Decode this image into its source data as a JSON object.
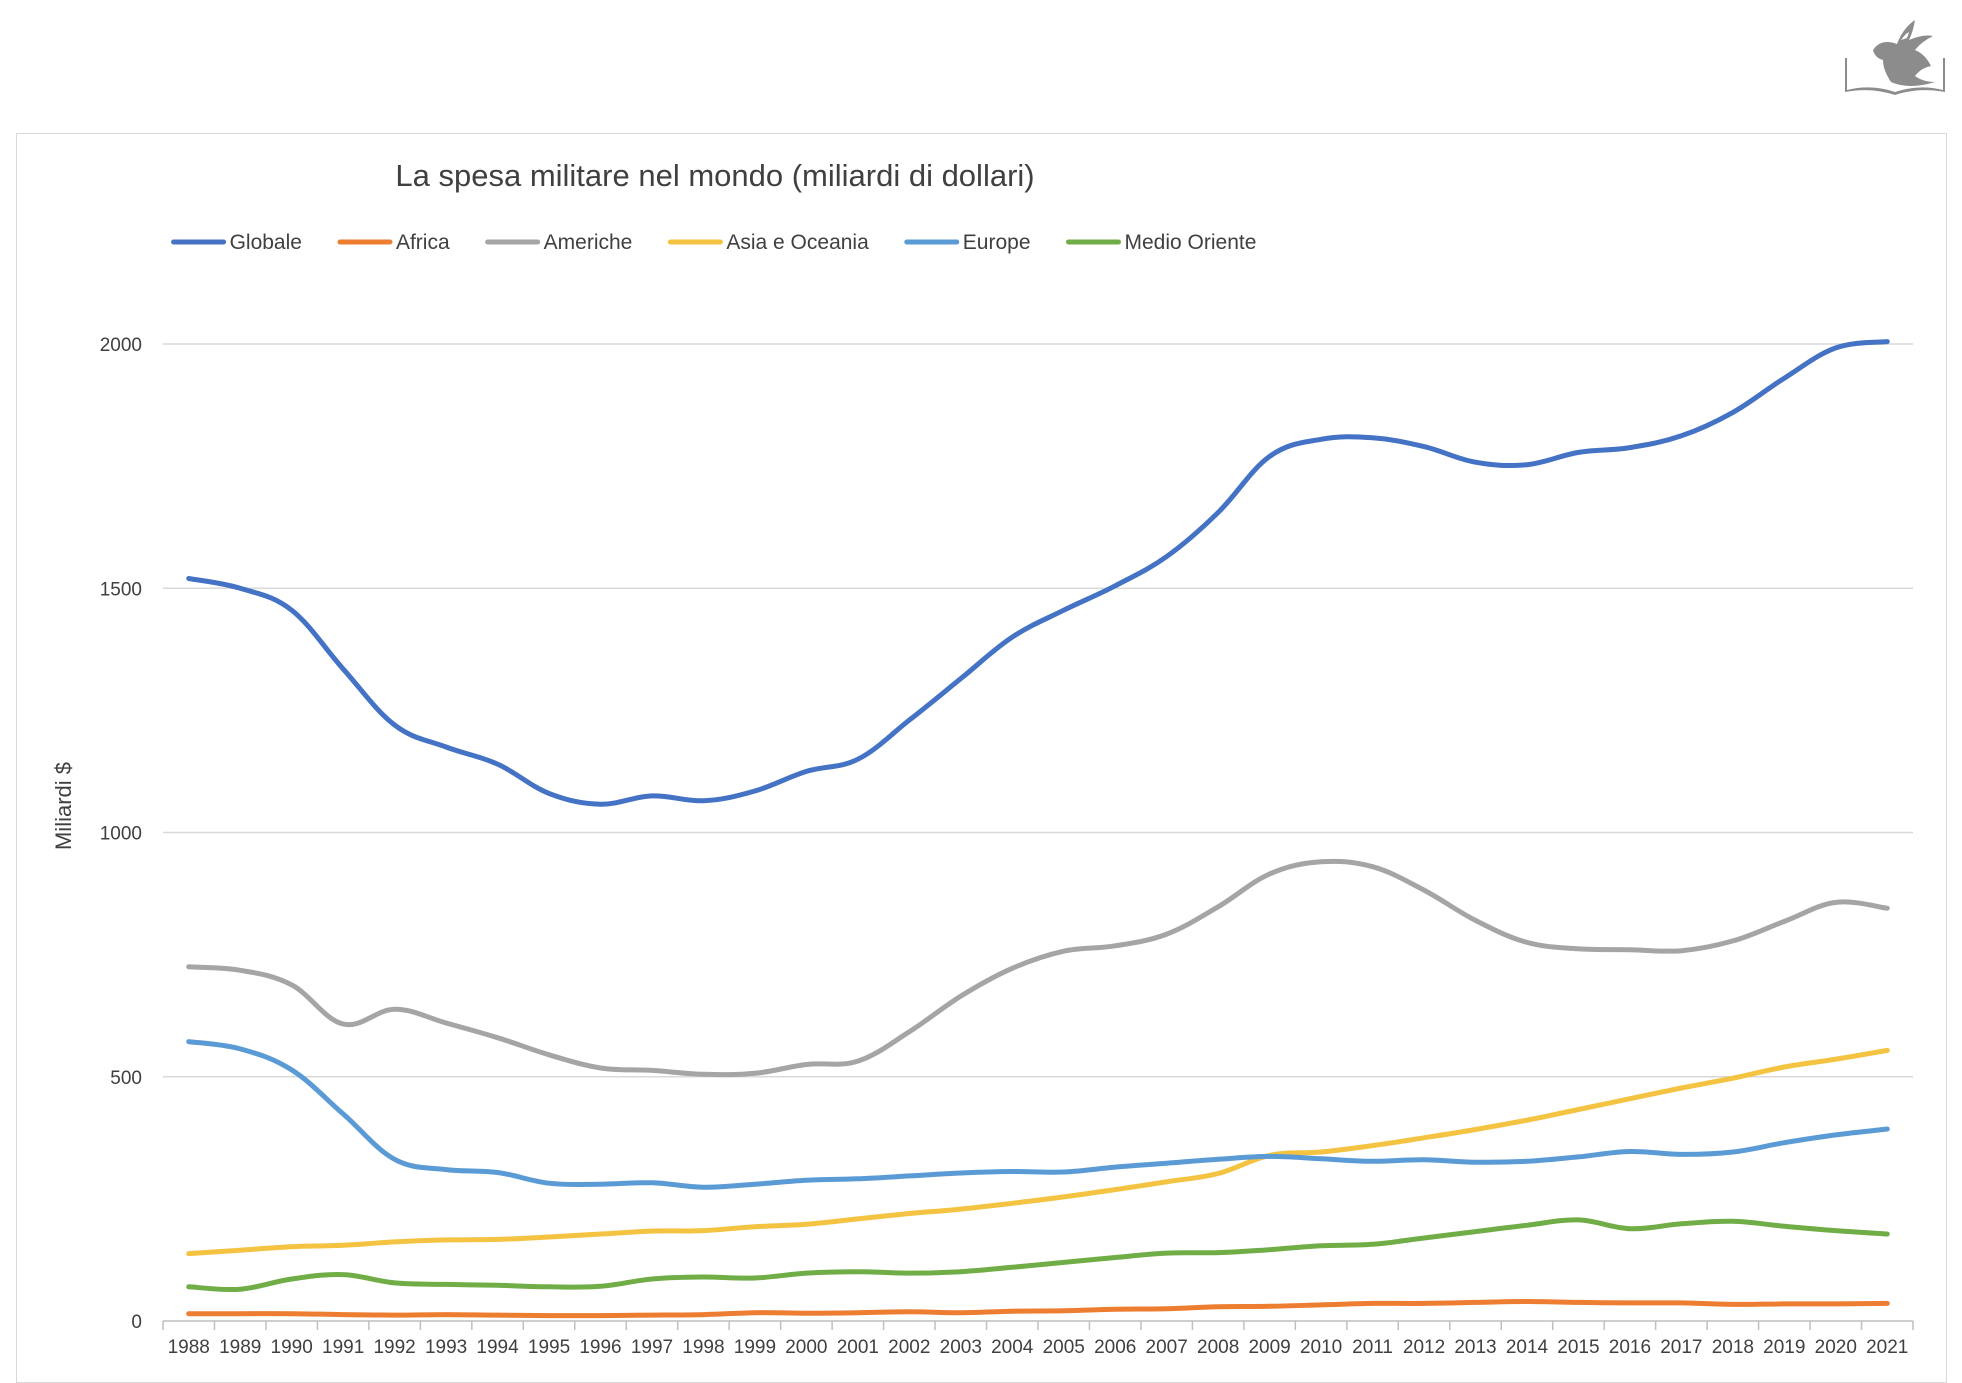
{
  "logo": {
    "icon": "dove-on-book-icon"
  },
  "chart_data": {
    "type": "line",
    "title": "La spesa militare nel mondo (miliardi di dollari)",
    "xlabel": "",
    "ylabel": "Miliardi $",
    "ylim": [
      0,
      2000
    ],
    "yticks": [
      0,
      500,
      1000,
      1500,
      2000
    ],
    "grid": true,
    "legend_position": "top",
    "categories": [
      "1988",
      "1989",
      "1990",
      "1991",
      "1992",
      "1993",
      "1994",
      "1995",
      "1996",
      "1997",
      "1998",
      "1999",
      "2000",
      "2001",
      "2002",
      "2003",
      "2004",
      "2005",
      "2006",
      "2007",
      "2008",
      "2009",
      "2010",
      "2011",
      "2012",
      "2013",
      "2014",
      "2015",
      "2016",
      "2017",
      "2018",
      "2019",
      "2020",
      "2021"
    ],
    "series": [
      {
        "name": "Globale",
        "color": "#4472C4",
        "values": [
          1520,
          1500,
          1455,
          1335,
          1220,
          1175,
          1140,
          1080,
          1058,
          1075,
          1065,
          1085,
          1125,
          1150,
          1230,
          1315,
          1400,
          1455,
          1505,
          1565,
          1655,
          1770,
          1805,
          1808,
          1790,
          1758,
          1753,
          1778,
          1788,
          1812,
          1860,
          1930,
          1992,
          2005
        ]
      },
      {
        "name": "Africa",
        "color": "#ED7D31",
        "values": [
          15,
          15,
          15,
          13,
          12,
          13,
          12,
          11,
          11,
          12,
          13,
          17,
          16,
          17,
          19,
          17,
          20,
          21,
          24,
          25,
          29,
          30,
          33,
          36,
          36,
          38,
          40,
          38,
          37,
          37,
          34,
          35,
          35,
          36
        ]
      },
      {
        "name": "Americhe",
        "color": "#A5A5A5",
        "values": [
          725,
          718,
          688,
          608,
          638,
          610,
          580,
          545,
          518,
          513,
          505,
          507,
          525,
          532,
          592,
          665,
          722,
          757,
          768,
          792,
          848,
          915,
          940,
          930,
          882,
          820,
          775,
          762,
          760,
          758,
          778,
          818,
          857,
          845
        ]
      },
      {
        "name": "Asia e Oceania",
        "color": "#F4C342",
        "values": [
          138,
          145,
          152,
          155,
          162,
          166,
          167,
          172,
          178,
          184,
          185,
          193,
          198,
          209,
          220,
          229,
          241,
          254,
          269,
          285,
          302,
          339,
          346,
          359,
          375,
          392,
          411,
          433,
          455,
          477,
          497,
          520,
          536,
          554
        ]
      },
      {
        "name": "Europe",
        "color": "#5B9BD5",
        "values": [
          572,
          557,
          514,
          424,
          331,
          310,
          304,
          282,
          280,
          283,
          274,
          280,
          288,
          291,
          297,
          303,
          306,
          305,
          315,
          323,
          331,
          337,
          332,
          327,
          330,
          325,
          327,
          336,
          347,
          341,
          346,
          365,
          381,
          393
        ]
      },
      {
        "name": "Medio Oriente",
        "color": "#70AD47",
        "values": [
          70,
          65,
          86,
          95,
          78,
          75,
          73,
          70,
          71,
          86,
          90,
          88,
          98,
          101,
          98,
          101,
          110,
          120,
          130,
          139,
          140,
          146,
          154,
          157,
          170,
          183,
          196,
          207,
          189,
          199,
          204,
          194,
          185,
          178
        ]
      }
    ]
  }
}
